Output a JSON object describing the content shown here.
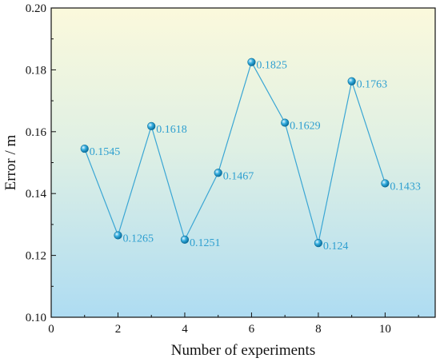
{
  "chart_data": {
    "type": "line",
    "title": "",
    "xlabel": "Number of experiments",
    "ylabel": "Error / m",
    "xlim": [
      0,
      11.5
    ],
    "ylim": [
      0.1,
      0.2
    ],
    "x_ticks": [
      0,
      2,
      4,
      6,
      8,
      10
    ],
    "y_ticks": [
      0.1,
      0.12,
      0.14,
      0.16,
      0.18,
      0.2
    ],
    "x_tick_labels": [
      "0",
      "2",
      "4",
      "6",
      "8",
      "10"
    ],
    "y_tick_labels": [
      "0.10",
      "0.12",
      "0.14",
      "0.16",
      "0.18",
      "0.20"
    ],
    "grid": false,
    "legend": "none",
    "series": [
      {
        "x": [
          1,
          2,
          3,
          4,
          5,
          6,
          7,
          8,
          9,
          10
        ],
        "values": [
          0.1545,
          0.1265,
          0.1618,
          0.1251,
          0.1467,
          0.1825,
          0.1629,
          0.124,
          0.1763,
          0.1433
        ],
        "labels": [
          "0.1545",
          "0.1265",
          "0.1618",
          "0.1251",
          "0.1467",
          "0.1825",
          "0.1629",
          "0.124",
          "0.1763",
          "0.1433"
        ]
      }
    ],
    "colors": {
      "line": "#3aa6d4",
      "marker": "#1e9ad0",
      "label": "#2e9fd0",
      "background_top": "#fbf9dc",
      "background_bottom": "#aedcf2"
    }
  }
}
